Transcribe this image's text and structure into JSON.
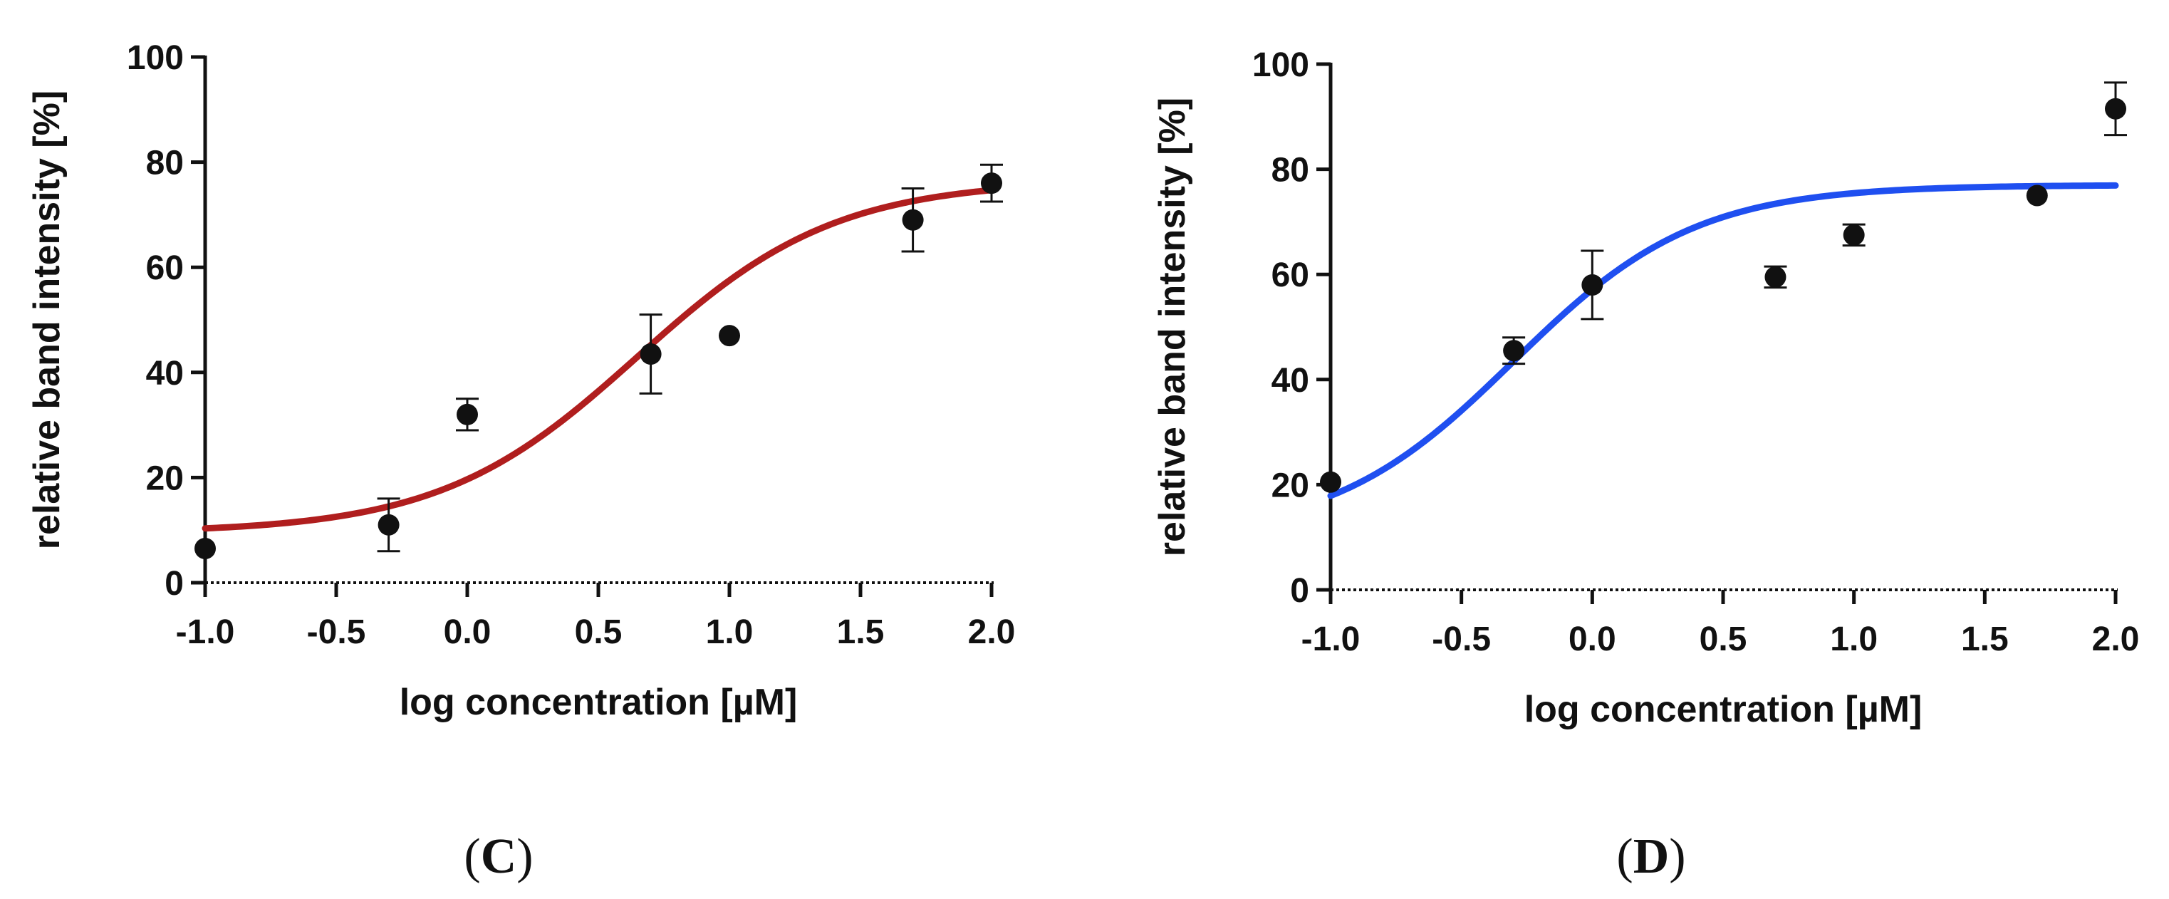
{
  "chart_data": [
    {
      "type": "scatter",
      "panel_label": "C",
      "xlabel": "log concentration [µM]",
      "ylabel": "relative band intensity [%]",
      "xlim": [
        -1.0,
        2.0
      ],
      "ylim": [
        0,
        100
      ],
      "xticks": [
        -1.0,
        -0.5,
        0.0,
        0.5,
        1.0,
        1.5,
        2.0
      ],
      "xtick_labels": [
        "-1.0",
        "-0.5",
        "0.0",
        "0.5",
        "1.0",
        "1.5",
        "2.0"
      ],
      "yticks": [
        0,
        20,
        40,
        60,
        80,
        100
      ],
      "ytick_labels": [
        "0",
        "20",
        "40",
        "60",
        "80",
        "100"
      ],
      "curve_color": "#B01E1E",
      "fit": {
        "model": "sigmoid",
        "bottom": 9.5,
        "top": 76.5,
        "logEC50": 0.65,
        "hill": 1.15
      },
      "points": [
        {
          "x": -1.0,
          "y": 6.5,
          "err": 0
        },
        {
          "x": -0.3,
          "y": 11,
          "err": 5
        },
        {
          "x": 0.0,
          "y": 32,
          "err": 3
        },
        {
          "x": 0.7,
          "y": 43.5,
          "err": 7.5
        },
        {
          "x": 1.0,
          "y": 47,
          "err": 0
        },
        {
          "x": 1.7,
          "y": 69,
          "err": 6
        },
        {
          "x": 2.0,
          "y": 76,
          "err": 3.5
        }
      ]
    },
    {
      "type": "scatter",
      "panel_label": "D",
      "xlabel": "log concentration [µM]",
      "ylabel": "relative band intensity [%]",
      "xlim": [
        -1.0,
        2.0
      ],
      "ylim": [
        0,
        100
      ],
      "xticks": [
        -1.0,
        -0.5,
        0.0,
        0.5,
        1.0,
        1.5,
        2.0
      ],
      "xtick_labels": [
        "-1.0",
        "-0.5",
        "0.0",
        "0.5",
        "1.0",
        "1.5",
        "2.0"
      ],
      "yticks": [
        0,
        20,
        40,
        60,
        80,
        100
      ],
      "ytick_labels": [
        "0",
        "20",
        "40",
        "60",
        "80",
        "100"
      ],
      "curve_color": "#1F4FF0",
      "fit": {
        "model": "sigmoid",
        "bottom": 10,
        "top": 77,
        "logEC50": -0.3,
        "hill": 1.25
      },
      "points": [
        {
          "x": -1.0,
          "y": 20.5,
          "err": 0
        },
        {
          "x": -0.3,
          "y": 45.5,
          "err": 2.5
        },
        {
          "x": 0.0,
          "y": 58,
          "err": 6.5
        },
        {
          "x": 0.7,
          "y": 59.5,
          "err": 2
        },
        {
          "x": 1.0,
          "y": 67.5,
          "err": 2
        },
        {
          "x": 1.7,
          "y": 75,
          "err": 0
        },
        {
          "x": 2.0,
          "y": 91.5,
          "err": 5
        }
      ]
    }
  ]
}
